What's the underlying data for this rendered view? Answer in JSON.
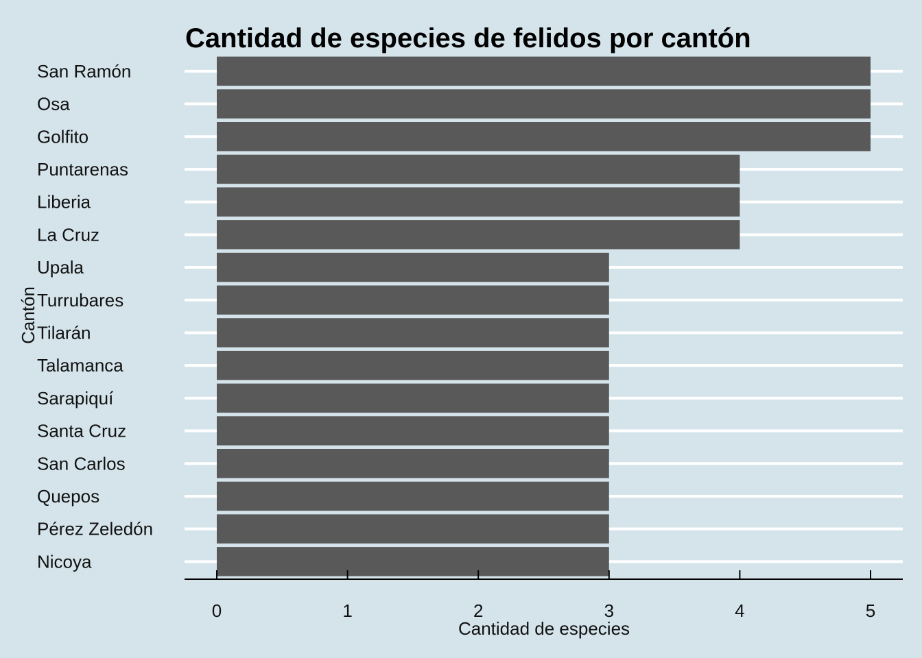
{
  "chart_data": {
    "type": "bar",
    "orientation": "horizontal",
    "title": "Cantidad de especies de felidos por cantón",
    "xlabel": "Cantidad de especies",
    "ylabel": "Cantón",
    "categories": [
      "San Ramón",
      "Osa",
      "Golfito",
      "Puntarenas",
      "Liberia",
      "La Cruz",
      "Upala",
      "Turrubares",
      "Tilarán",
      "Talamanca",
      "Sarapiquí",
      "Santa Cruz",
      "San Carlos",
      "Quepos",
      "Pérez Zeledón",
      "Nicoya"
    ],
    "values": [
      5,
      5,
      5,
      4,
      4,
      4,
      3,
      3,
      3,
      3,
      3,
      3,
      3,
      3,
      3,
      3
    ],
    "xlim": [
      0,
      5
    ],
    "xticks": [
      "0",
      "1",
      "2",
      "3",
      "4",
      "5"
    ],
    "grid": "horizontal major lines",
    "colors": {
      "background": "#d5e4eb",
      "bar": "#595959",
      "grid": "#ffffff",
      "axis": "#000000"
    }
  }
}
